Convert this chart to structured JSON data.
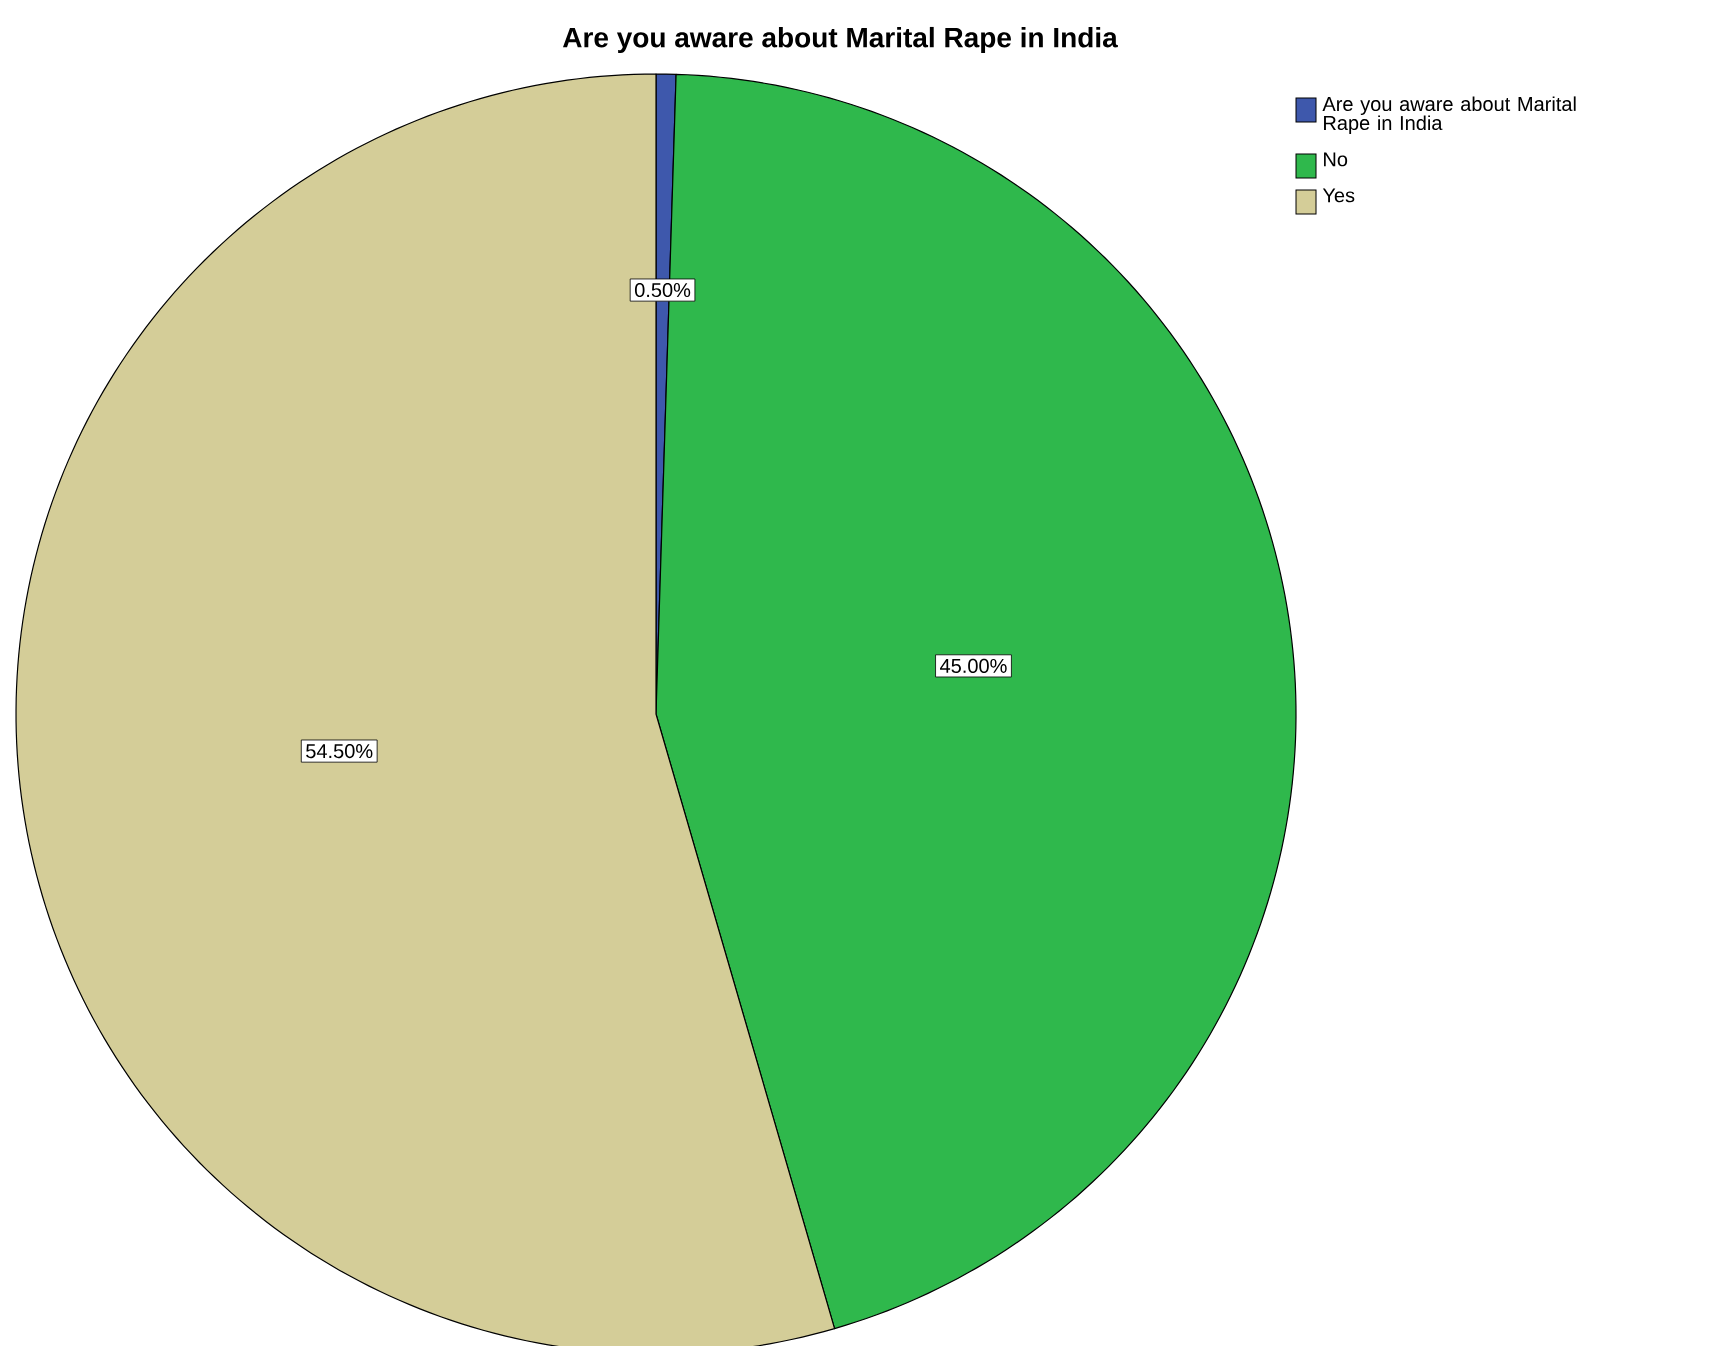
{
  "chart_data": {
    "type": "pie",
    "title": "Are you aware about Marital Rape in India",
    "categories": [
      "Are you aware about Marital Rape in India",
      "No",
      "Yes"
    ],
    "values": [
      0.5,
      45,
      54.5
    ],
    "value_labels": [
      "0.50%",
      "45.00%",
      "54.50%"
    ],
    "colors": [
      "#3e58ac",
      "#2fb84c",
      "#d4cd98"
    ],
    "legend": "top right"
  }
}
